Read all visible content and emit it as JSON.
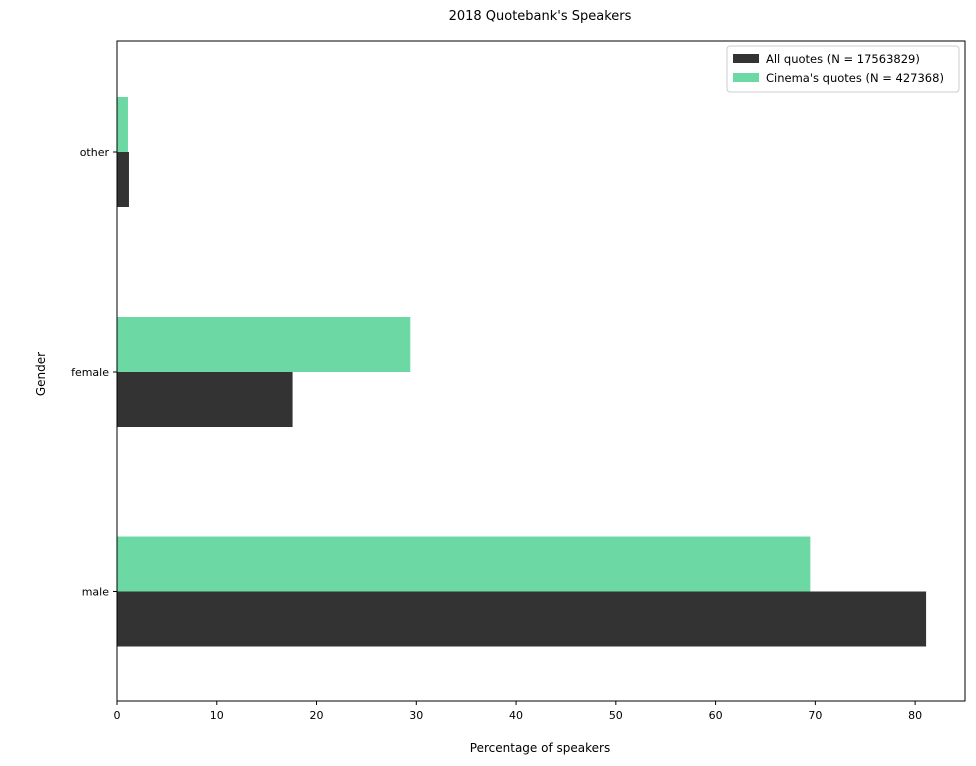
{
  "chart_data": {
    "type": "bar",
    "orientation": "horizontal",
    "title": "2018 Quotebank's Speakers",
    "xlabel": "Percentage of speakers",
    "ylabel": "Gender",
    "categories": [
      "male",
      "female",
      "other"
    ],
    "xlim": [
      0,
      85
    ],
    "xticks": [
      "0",
      "10",
      "20",
      "30",
      "40",
      "50",
      "60",
      "70",
      "80"
    ],
    "grid": false,
    "legend_position": "top-right",
    "series": [
      {
        "name": "All quotes (N = 17563829)",
        "color": "#333333",
        "values": [
          81.1,
          17.6,
          1.2
        ]
      },
      {
        "name": "Cinema's quotes (N = 427368)",
        "color": "#6cd9a4",
        "values": [
          69.5,
          29.4,
          1.1
        ]
      }
    ]
  }
}
